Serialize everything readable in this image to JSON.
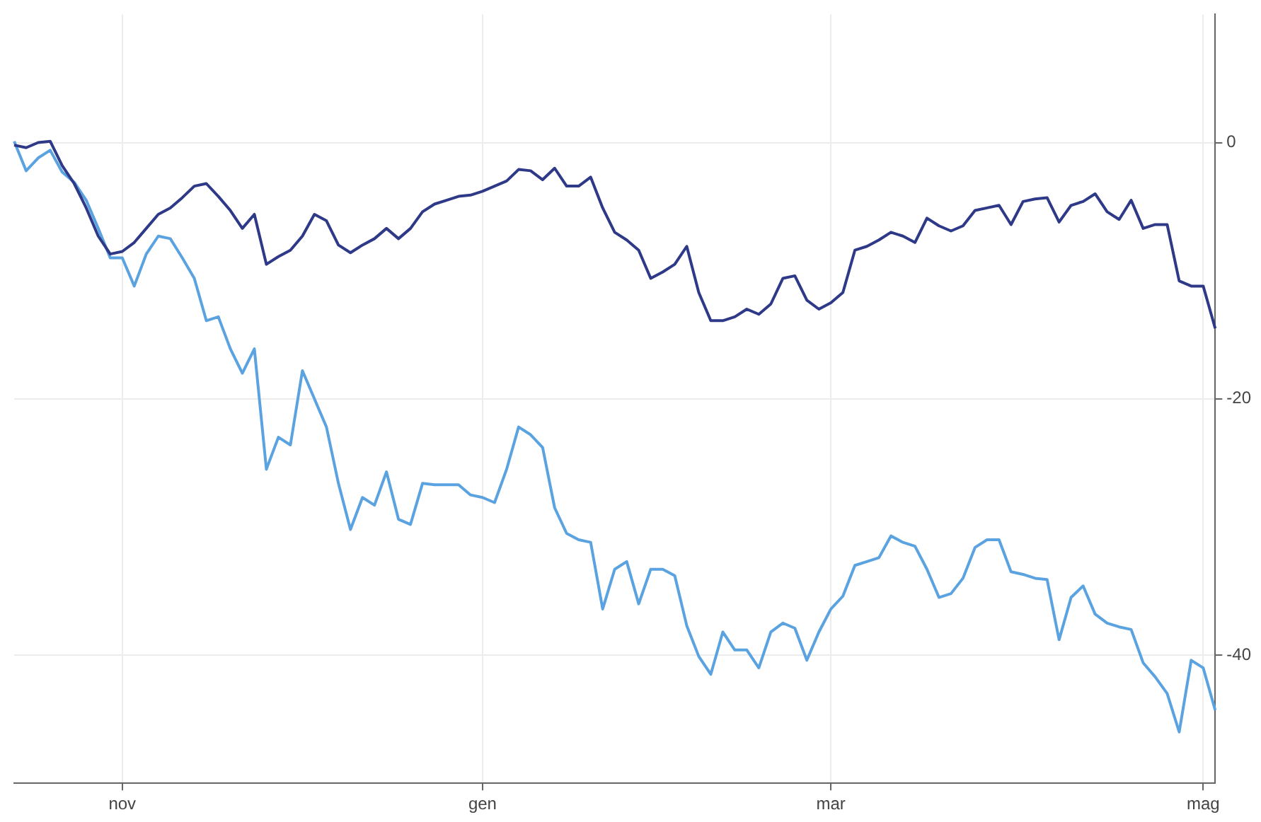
{
  "chart_data": {
    "type": "line",
    "categories": [
      null,
      null,
      null,
      null,
      null,
      null,
      null,
      null,
      null,
      "nov",
      null,
      null,
      null,
      null,
      null,
      null,
      null,
      null,
      null,
      null,
      null,
      null,
      null,
      null,
      null,
      null,
      null,
      null,
      null,
      null,
      null,
      null,
      null,
      null,
      null,
      null,
      null,
      null,
      null,
      "gen",
      null,
      null,
      null,
      null,
      null,
      null,
      null,
      null,
      null,
      null,
      null,
      null,
      null,
      null,
      null,
      null,
      null,
      null,
      null,
      null,
      null,
      null,
      null,
      null,
      null,
      null,
      null,
      null,
      "mar",
      null,
      null,
      null,
      null,
      null,
      null,
      null,
      null,
      null,
      null,
      null,
      null,
      null,
      null,
      null,
      null,
      null,
      null,
      null,
      null,
      null,
      null,
      null,
      null,
      null,
      null,
      null,
      null,
      null,
      null,
      "mag",
      null
    ],
    "series": [
      {
        "color": "#2e3a87",
        "values": [
          -0.2,
          -0.4,
          0,
          0.1,
          -1.8,
          -3.2,
          -5.1,
          -7.3,
          -8.7,
          -8.5,
          -7.8,
          -6.7,
          -5.6,
          -5.1,
          -4.3,
          -3.4,
          -3.2,
          -4.2,
          -5.3,
          -6.7,
          -5.6,
          -9.5,
          -8.9,
          -8.4,
          -7.3,
          -5.6,
          -6.1,
          -8.0,
          -8.6,
          -8.0,
          -7.5,
          -6.7,
          -7.5,
          -6.7,
          -5.4,
          -4.8,
          -4.5,
          -4.2,
          -4.1,
          -3.8,
          -3.4,
          -3.0,
          -2.1,
          -2.2,
          -2.9,
          -2.0,
          -3.4,
          -3.4,
          -2.7,
          -5.1,
          -7.0,
          -7.6,
          -8.4,
          -10.6,
          -10.1,
          -9.5,
          -8.1,
          -11.7,
          -13.9,
          -13.9,
          -13.6,
          -13.0,
          -13.4,
          -12.6,
          -10.6,
          -10.4,
          -12.3,
          -13.0,
          -12.5,
          -11.7,
          -8.4,
          -8.1,
          -7.6,
          -7.0,
          -7.3,
          -7.8,
          -5.9,
          -6.5,
          -6.9,
          -6.5,
          -5.3,
          -5.1,
          -4.9,
          -6.4,
          -4.6,
          -4.4,
          -4.3,
          -6.2,
          -4.9,
          -4.6,
          -4.0,
          -5.4,
          -6.0,
          -4.5,
          -6.7,
          -6.4,
          -6.4,
          -10.8,
          -11.2,
          -11.2,
          -14.5
        ]
      },
      {
        "color": "#5ba3e0",
        "values": [
          0.1,
          -2.2,
          -1.2,
          -0.6,
          -2.3,
          -3.1,
          -4.5,
          -6.7,
          -9.0,
          -9.0,
          -11.2,
          -8.7,
          -7.3,
          -7.5,
          -9.0,
          -10.6,
          -13.9,
          -13.6,
          -16.1,
          -18.0,
          -16.1,
          -25.5,
          -23.0,
          -23.6,
          -17.8,
          -20.0,
          -22.2,
          -26.6,
          -30.2,
          -27.7,
          -28.3,
          -25.7,
          -29.4,
          -29.8,
          -26.6,
          -26.7,
          -26.7,
          -26.7,
          -27.5,
          -27.7,
          -28.1,
          -25.5,
          -22.2,
          -22.8,
          -23.8,
          -28.5,
          -30.5,
          -31.0,
          -31.2,
          -36.4,
          -33.3,
          -32.7,
          -36.0,
          -33.3,
          -33.3,
          -33.8,
          -37.7,
          -40.1,
          -41.5,
          -38.2,
          -39.6,
          -39.6,
          -41.0,
          -38.2,
          -37.5,
          -37.9,
          -40.4,
          -38.2,
          -36.4,
          -35.4,
          -33.0,
          -32.7,
          -32.4,
          -30.7,
          -31.2,
          -31.5,
          -33.3,
          -35.5,
          -35.2,
          -34.0,
          -31.6,
          -31.0,
          -31.0,
          -33.5,
          -33.7,
          -34.0,
          -34.1,
          -38.8,
          -35.5,
          -34.6,
          -36.8,
          -37.5,
          -37.8,
          -38.0,
          -40.6,
          -41.7,
          -43.0,
          -46.0,
          -40.4,
          -41.0,
          -44.3
        ]
      }
    ],
    "ylim": [
      -50,
      10
    ],
    "yticks": [
      0,
      -20,
      -40
    ],
    "grid": true,
    "legend": false,
    "marker": "none",
    "line_style": "solid"
  }
}
